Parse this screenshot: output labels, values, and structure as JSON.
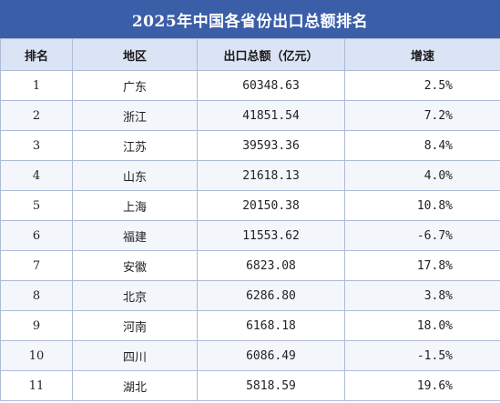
{
  "title": "2025年中国各省份出口总额排名",
  "headers": {
    "rank": "排名",
    "region": "地区",
    "export_total": "出口总额（亿元）",
    "growth": "增速"
  },
  "rows": [
    {
      "rank": "1",
      "region": "广东",
      "export_total": "60348.63",
      "growth": "2.5%"
    },
    {
      "rank": "2",
      "region": "浙江",
      "export_total": "41851.54",
      "growth": "7.2%"
    },
    {
      "rank": "3",
      "region": "江苏",
      "export_total": "39593.36",
      "growth": "8.4%"
    },
    {
      "rank": "4",
      "region": "山东",
      "export_total": "21618.13",
      "growth": "4.0%"
    },
    {
      "rank": "5",
      "region": "上海",
      "export_total": "20150.38",
      "growth": "10.8%"
    },
    {
      "rank": "6",
      "region": "福建",
      "export_total": "11553.62",
      "growth": "-6.7%"
    },
    {
      "rank": "7",
      "region": "安徽",
      "export_total": "6823.08",
      "growth": "17.8%"
    },
    {
      "rank": "8",
      "region": "北京",
      "export_total": "6286.80",
      "growth": "3.8%"
    },
    {
      "rank": "9",
      "region": "河南",
      "export_total": "6168.18",
      "growth": "18.0%"
    },
    {
      "rank": "10",
      "region": "四川",
      "export_total": "6086.49",
      "growth": "-1.5%"
    },
    {
      "rank": "11",
      "region": "湖北",
      "export_total": "5818.59",
      "growth": "19.6%"
    }
  ],
  "colors": {
    "title_bg": "#3a5ea8",
    "header_bg": "#dbe4f4",
    "border": "#aebbd6"
  }
}
